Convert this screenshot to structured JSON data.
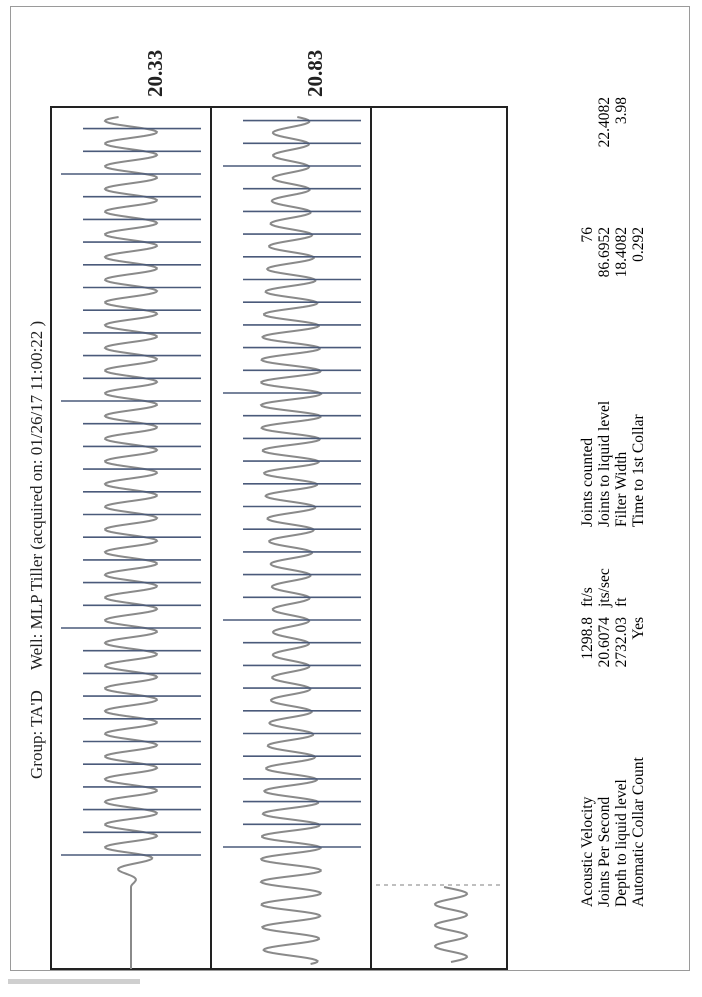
{
  "header": {
    "group": "Group: TA'D",
    "well": "Well: MLP Tiller (acquired on: 01/26/17 11:00:22 )"
  },
  "traces": {
    "top_value": "20.33",
    "bottom_value": "20.83"
  },
  "stats": {
    "left": [
      {
        "label": "Acoustic Velocity",
        "value": "1298.8",
        "unit": "ft/s"
      },
      {
        "label": "Joints Per Second",
        "value": "20.6074",
        "unit": "jts/sec"
      },
      {
        "label": "Depth to liquid level",
        "value": "2732.03",
        "unit": "ft"
      },
      {
        "label": "Automatic Collar Count",
        "value": "Yes",
        "unit": ""
      }
    ],
    "right": [
      {
        "label": "Joints counted",
        "value": "76",
        "value2": ""
      },
      {
        "label": "Joints to liquid level",
        "value": "86.6952",
        "value2": "22.4082"
      },
      {
        "label": "Filter Width",
        "value": "18.4082",
        "value2": "3.98"
      },
      {
        "label": "Time to 1st Collar",
        "value": "0.292",
        "value2": ""
      }
    ]
  },
  "chart_data": {
    "type": "line",
    "title": "",
    "series": [
      {
        "name": "",
        "description": ""
      },
      {
        "name": "",
        "description": ""
      },
      {
        "name": "",
        "description": ""
      }
    ]
  },
  "colors": {
    "wave": "#8a8a8a",
    "marker": "#4a5a7a",
    "border": "#222222",
    "dashed": "#999999"
  }
}
